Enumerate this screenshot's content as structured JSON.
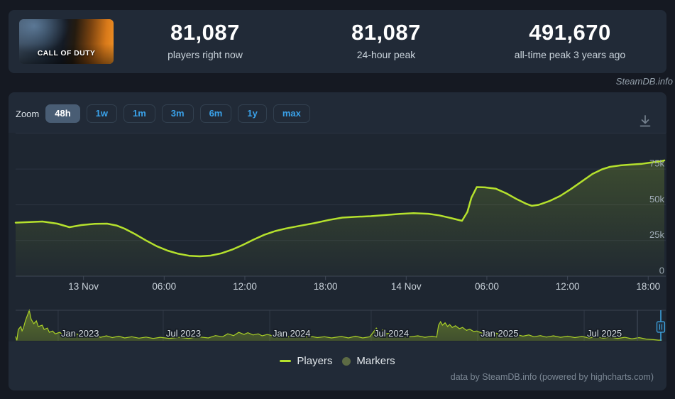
{
  "header": {
    "game_title": "CALL OF DUTY",
    "stats": [
      {
        "value": "81,087",
        "label": "players right now"
      },
      {
        "value": "81,087",
        "label": "24-hour peak"
      },
      {
        "value": "491,670",
        "label": "all-time peak 3 years ago"
      }
    ]
  },
  "watermark": "SteamDB.info",
  "toolbar": {
    "zoom_label": "Zoom",
    "ranges": [
      {
        "label": "48h",
        "active": true
      },
      {
        "label": "1w",
        "active": false
      },
      {
        "label": "1m",
        "active": false
      },
      {
        "label": "3m",
        "active": false
      },
      {
        "label": "6m",
        "active": false
      },
      {
        "label": "1y",
        "active": false
      },
      {
        "label": "max",
        "active": false
      }
    ]
  },
  "chart_data": {
    "type": "line",
    "series_name": "Players",
    "ylabel": "players",
    "y_max": 100000,
    "grid_values": [
      25000,
      50000,
      75000,
      100000
    ],
    "y_ticks": [
      {
        "v": 0,
        "label": "0"
      },
      {
        "v": 25000,
        "label": "25k"
      },
      {
        "v": 50000,
        "label": "50k"
      },
      {
        "v": 75000,
        "label": "75k"
      }
    ],
    "window_hours": 48.25,
    "x_ticks": [
      {
        "t": 5.05,
        "label": "13 Nov"
      },
      {
        "t": 11.05,
        "label": "06:00"
      },
      {
        "t": 17.05,
        "label": "12:00"
      },
      {
        "t": 23.05,
        "label": "18:00"
      },
      {
        "t": 29.05,
        "label": "14 Nov"
      },
      {
        "t": 35.05,
        "label": "06:00"
      },
      {
        "t": 41.05,
        "label": "12:00"
      },
      {
        "t": 47.05,
        "label": "18:00"
      }
    ],
    "line_color": "#b5e12d",
    "points": [
      [
        0,
        37500
      ],
      [
        1.2,
        38000
      ],
      [
        2.0,
        38300
      ],
      [
        3.1,
        36800
      ],
      [
        4.0,
        34300
      ],
      [
        4.9,
        35800
      ],
      [
        5.9,
        36700
      ],
      [
        6.8,
        36800
      ],
      [
        7.5,
        35500
      ],
      [
        8.1,
        33300
      ],
      [
        8.9,
        29400
      ],
      [
        9.7,
        25000
      ],
      [
        10.5,
        21000
      ],
      [
        11.3,
        17900
      ],
      [
        12.1,
        15700
      ],
      [
        12.9,
        14300
      ],
      [
        13.7,
        13900
      ],
      [
        14.5,
        14400
      ],
      [
        15.3,
        16000
      ],
      [
        16.1,
        18600
      ],
      [
        16.9,
        21900
      ],
      [
        17.7,
        25600
      ],
      [
        18.5,
        29000
      ],
      [
        19.3,
        31600
      ],
      [
        20.1,
        33400
      ],
      [
        21.1,
        35200
      ],
      [
        22.2,
        37100
      ],
      [
        23.3,
        39400
      ],
      [
        24.3,
        41000
      ],
      [
        25.4,
        41600
      ],
      [
        26.4,
        42000
      ],
      [
        27.5,
        42800
      ],
      [
        28.6,
        43600
      ],
      [
        29.6,
        44100
      ],
      [
        30.7,
        43700
      ],
      [
        31.5,
        42600
      ],
      [
        32.3,
        40900
      ],
      [
        32.9,
        39500
      ],
      [
        33.2,
        38800
      ],
      [
        33.6,
        45000
      ],
      [
        33.9,
        55000
      ],
      [
        34.3,
        62400
      ],
      [
        34.9,
        62200
      ],
      [
        35.7,
        61300
      ],
      [
        36.5,
        58000
      ],
      [
        37.3,
        53800
      ],
      [
        38.0,
        50600
      ],
      [
        38.4,
        49300
      ],
      [
        38.9,
        50000
      ],
      [
        39.7,
        52600
      ],
      [
        40.5,
        56200
      ],
      [
        41.3,
        61000
      ],
      [
        42.1,
        66300
      ],
      [
        42.9,
        71600
      ],
      [
        43.6,
        74800
      ],
      [
        44.2,
        76600
      ],
      [
        45.0,
        77600
      ],
      [
        45.8,
        78200
      ],
      [
        46.6,
        78700
      ],
      [
        47.4,
        79800
      ],
      [
        48.0,
        80500
      ],
      [
        48.25,
        81087
      ]
    ],
    "navigator": {
      "y_max": 492000,
      "line_color": "#a9cf27",
      "x_ticks": [
        {
          "f": 0.0656,
          "label": "Jan 2023"
        },
        {
          "f": 0.2275,
          "label": "Jul 2023"
        },
        {
          "f": 0.3917,
          "label": "Jan 2024"
        },
        {
          "f": 0.5481,
          "label": "Jul 2024"
        },
        {
          "f": 0.7122,
          "label": "Jan 2025"
        },
        {
          "f": 0.8764,
          "label": "Jul 2025"
        }
      ],
      "points": [
        [
          0.0,
          70000
        ],
        [
          0.002,
          8000
        ],
        [
          0.004,
          180000
        ],
        [
          0.008,
          230000
        ],
        [
          0.01,
          160000
        ],
        [
          0.012,
          205000
        ],
        [
          0.015,
          320000
        ],
        [
          0.021,
          491670
        ],
        [
          0.024,
          345000
        ],
        [
          0.028,
          276000
        ],
        [
          0.032,
          322000
        ],
        [
          0.035,
          230000
        ],
        [
          0.041,
          252000
        ],
        [
          0.044,
          182000
        ],
        [
          0.049,
          205000
        ],
        [
          0.052,
          136000
        ],
        [
          0.057,
          158000
        ],
        [
          0.061,
          112000
        ],
        [
          0.068,
          136000
        ],
        [
          0.074,
          88000
        ],
        [
          0.079,
          122000
        ],
        [
          0.087,
          88000
        ],
        [
          0.094,
          112000
        ],
        [
          0.101,
          74000
        ],
        [
          0.109,
          102000
        ],
        [
          0.116,
          65000
        ],
        [
          0.123,
          88000
        ],
        [
          0.131,
          56000
        ],
        [
          0.14,
          80000
        ],
        [
          0.149,
          52000
        ],
        [
          0.159,
          74000
        ],
        [
          0.168,
          46000
        ],
        [
          0.179,
          65000
        ],
        [
          0.19,
          42000
        ],
        [
          0.201,
          60000
        ],
        [
          0.212,
          38000
        ],
        [
          0.223,
          56000
        ],
        [
          0.237,
          38000
        ],
        [
          0.252,
          56000
        ],
        [
          0.267,
          38000
        ],
        [
          0.281,
          65000
        ],
        [
          0.297,
          46000
        ],
        [
          0.308,
          84000
        ],
        [
          0.319,
          65000
        ],
        [
          0.327,
          112000
        ],
        [
          0.336,
          84000
        ],
        [
          0.344,
          136000
        ],
        [
          0.352,
          102000
        ],
        [
          0.358,
          130000
        ],
        [
          0.366,
          94000
        ],
        [
          0.374,
          112000
        ],
        [
          0.38,
          80000
        ],
        [
          0.388,
          102000
        ],
        [
          0.399,
          74000
        ],
        [
          0.41,
          94000
        ],
        [
          0.421,
          65000
        ],
        [
          0.432,
          84000
        ],
        [
          0.443,
          56000
        ],
        [
          0.454,
          74000
        ],
        [
          0.465,
          52000
        ],
        [
          0.476,
          65000
        ],
        [
          0.487,
          46000
        ],
        [
          0.502,
          70000
        ],
        [
          0.513,
          46000
        ],
        [
          0.524,
          74000
        ],
        [
          0.535,
          46000
        ],
        [
          0.546,
          65000
        ],
        [
          0.556,
          205000
        ],
        [
          0.561,
          136000
        ],
        [
          0.567,
          182000
        ],
        [
          0.572,
          112000
        ],
        [
          0.579,
          136000
        ],
        [
          0.587,
          98000
        ],
        [
          0.594,
          80000
        ],
        [
          0.601,
          88000
        ],
        [
          0.609,
          65000
        ],
        [
          0.62,
          80000
        ],
        [
          0.631,
          56000
        ],
        [
          0.642,
          74000
        ],
        [
          0.649,
          60000
        ],
        [
          0.652,
          252000
        ],
        [
          0.655,
          308000
        ],
        [
          0.658,
          252000
        ],
        [
          0.662,
          290000
        ],
        [
          0.666,
          230000
        ],
        [
          0.669,
          262000
        ],
        [
          0.673,
          215000
        ],
        [
          0.678,
          243000
        ],
        [
          0.684,
          196000
        ],
        [
          0.689,
          215000
        ],
        [
          0.695,
          168000
        ],
        [
          0.7,
          187000
        ],
        [
          0.706,
          150000
        ],
        [
          0.711,
          158000
        ],
        [
          0.719,
          122000
        ],
        [
          0.727,
          140000
        ],
        [
          0.733,
          102000
        ],
        [
          0.741,
          122000
        ],
        [
          0.749,
          88000
        ],
        [
          0.755,
          112000
        ],
        [
          0.763,
          80000
        ],
        [
          0.772,
          102000
        ],
        [
          0.782,
          74000
        ],
        [
          0.791,
          94000
        ],
        [
          0.799,
          65000
        ],
        [
          0.809,
          84000
        ],
        [
          0.818,
          60000
        ],
        [
          0.829,
          80000
        ],
        [
          0.84,
          56000
        ],
        [
          0.851,
          74000
        ],
        [
          0.862,
          52000
        ],
        [
          0.873,
          70000
        ],
        [
          0.884,
          46000
        ],
        [
          0.895,
          65000
        ],
        [
          0.906,
          42000
        ],
        [
          0.917,
          60000
        ],
        [
          0.928,
          38000
        ],
        [
          0.939,
          56000
        ],
        [
          0.95,
          32000
        ],
        [
          0.961,
          52000
        ],
        [
          0.972,
          28000
        ],
        [
          0.983,
          18000
        ],
        [
          0.991,
          10000
        ],
        [
          0.996,
          12000
        ]
      ]
    }
  },
  "legend": {
    "items": [
      {
        "label": "Players",
        "swatch": "line",
        "color": "#b5e12d"
      },
      {
        "label": "Markers",
        "swatch": "circle",
        "color": "#5d6b44"
      }
    ]
  },
  "footer": {
    "credit": "data by SteamDB.info (powered by highcharts.com)"
  }
}
